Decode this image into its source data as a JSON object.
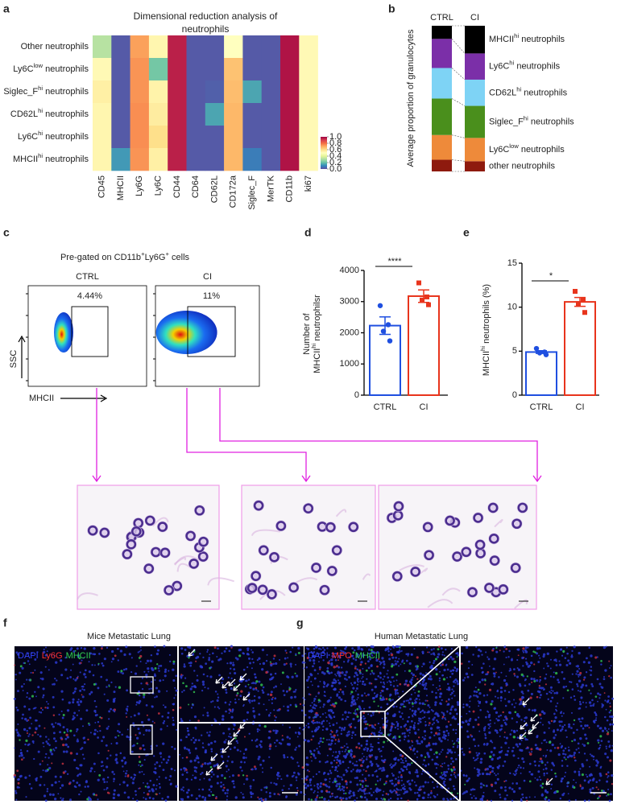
{
  "figure": {
    "panel_labels": [
      "a",
      "b",
      "c",
      "d",
      "e",
      "f",
      "g"
    ],
    "flow": {
      "title": [
        "Pre-gated on CD11b",
        "+",
        "Ly6G",
        "+",
        " cells"
      ],
      "samples": [
        "CTRL",
        "CI"
      ],
      "gates": [
        "4.44%",
        "11%"
      ],
      "y_label": "SSC",
      "x_label": "MHCII"
    },
    "if_mice": {
      "title": "Mice Metastatic Lung",
      "stains": [
        {
          "text": "DAPI",
          "color": "#3344ff"
        },
        {
          "text": "Ly6G",
          "color": "#ff3030"
        },
        {
          "text": "MHCII",
          "color": "#30d050"
        }
      ]
    },
    "if_human": {
      "title": "Human Metastatic Lung",
      "stains": [
        {
          "text": "DAPI",
          "color": "#3344ff"
        },
        {
          "text": "MPO",
          "color": "#ff3030"
        },
        {
          "text": "MHCII",
          "color": "#30d050"
        }
      ]
    }
  },
  "chart_data": [
    {
      "type": "heatmap",
      "title": "Dimensional reduction analysis of neutrophils",
      "rows": [
        "Other neutrophils",
        [
          "Ly6C",
          "low",
          " neutrophils"
        ],
        [
          "Siglec_F",
          "hi",
          " neutrophils"
        ],
        [
          "CD62L",
          "hi",
          " neutrophils"
        ],
        [
          "Ly6C",
          "hi",
          " neutrophils"
        ],
        [
          "MHCII",
          "hi",
          " neutrophils"
        ]
      ],
      "columns": [
        "CD45",
        "MHCII",
        "Ly6G",
        "Ly6C",
        "CD44",
        "CD64",
        "CD62L",
        "CD172a",
        "Siglec_F",
        "MerTK",
        "CD11b",
        "ki67"
      ],
      "values": [
        [
          0.32,
          0.02,
          0.72,
          0.53,
          0.95,
          0.02,
          0.02,
          0.5,
          0.02,
          0.02,
          0.97,
          0.52
        ],
        [
          0.52,
          0.02,
          0.74,
          0.22,
          0.95,
          0.02,
          0.02,
          0.66,
          0.02,
          0.02,
          0.97,
          0.52
        ],
        [
          0.55,
          0.02,
          0.74,
          0.54,
          0.95,
          0.02,
          0.03,
          0.67,
          0.15,
          0.02,
          0.97,
          0.52
        ],
        [
          0.53,
          0.02,
          0.75,
          0.56,
          0.95,
          0.02,
          0.15,
          0.68,
          0.02,
          0.02,
          0.97,
          0.52
        ],
        [
          0.53,
          0.02,
          0.75,
          0.6,
          0.95,
          0.02,
          0.02,
          0.68,
          0.02,
          0.02,
          0.97,
          0.52
        ],
        [
          0.53,
          0.13,
          0.74,
          0.55,
          0.95,
          0.02,
          0.02,
          0.68,
          0.08,
          0.02,
          0.97,
          0.52
        ]
      ],
      "zlim": [
        0,
        1
      ],
      "colorbar_ticks": [
        {
          "value": 0,
          "label": "0.0"
        },
        {
          "value": 0.2,
          "label": "0.2"
        },
        {
          "value": 0.4,
          "label": "0.4"
        },
        {
          "value": 0.6,
          "label": "0.6"
        },
        {
          "value": 0.8,
          "label": "0.8"
        },
        {
          "value": 1,
          "label": "1.0"
        }
      ],
      "colors": [
        "#5e4fa2",
        "#3288bd",
        "#66c2a5",
        "#abdda4",
        "#e6f598",
        "#ffffbf",
        "#fee08b",
        "#fdae61",
        "#f46d43",
        "#d53e4f",
        "#9e0142"
      ]
    },
    {
      "type": "stacked_bar",
      "y_label": "Average proportion of granulocytes",
      "categories": [
        "CTRL",
        "CI"
      ],
      "series": [
        {
          "name": [
            "MHCII",
            "hi",
            " neutrophils"
          ],
          "color": "#000000",
          "values": [
            9,
            19
          ]
        },
        {
          "name": [
            "Ly6C",
            "hi",
            " neutrophils"
          ],
          "color": "#7b2fa8",
          "values": [
            20,
            18
          ]
        },
        {
          "name": [
            "CD62L",
            "hi",
            " neutrophils"
          ],
          "color": "#7ed3f5",
          "values": [
            21,
            18
          ]
        },
        {
          "name": [
            "Siglec_F",
            "hi",
            " neutrophils"
          ],
          "color": "#4a8f1c",
          "values": [
            25,
            22
          ]
        },
        {
          "name": [
            "Ly6C",
            "low",
            " neutrophils"
          ],
          "color": "#ee8a3a",
          "values": [
            17,
            16
          ]
        },
        {
          "name": "other neutrophils",
          "color": "#8e1a0e",
          "values": [
            8,
            7
          ]
        }
      ]
    },
    {
      "type": "bar_dots",
      "y_label": [
        [
          "Number of"
        ],
        [
          "MHCII",
          "hi",
          " neutrophilsr"
        ]
      ],
      "categories": [
        "CTRL",
        "CI"
      ],
      "colors": [
        "#1f4fe0",
        "#e8341c"
      ],
      "values": [
        2230,
        3175
      ],
      "errors": [
        280,
        200
      ],
      "points": [
        [
          2870,
          2260,
          2050,
          1740
        ],
        [
          3600,
          3150,
          3050,
          2900
        ]
      ],
      "ylim": [
        0,
        4000
      ],
      "yticks": [
        0,
        1000,
        2000,
        3000,
        4000
      ],
      "significance": "****"
    },
    {
      "type": "bar_dots",
      "y_label": [
        [
          "MHCII",
          "hi",
          " neutrophils (%)"
        ]
      ],
      "categories": [
        "CTRL",
        "CI"
      ],
      "colors": [
        "#1f4fe0",
        "#e8341c"
      ],
      "values": [
        4.9,
        10.6
      ],
      "errors": [
        0.15,
        0.5
      ],
      "points": [
        [
          5.3,
          4.9,
          4.8,
          4.6
        ],
        [
          11.8,
          10.8,
          10.4,
          9.4
        ]
      ],
      "ylim": [
        0,
        15
      ],
      "yticks": [
        0,
        5,
        10,
        15
      ],
      "significance": "*"
    }
  ]
}
